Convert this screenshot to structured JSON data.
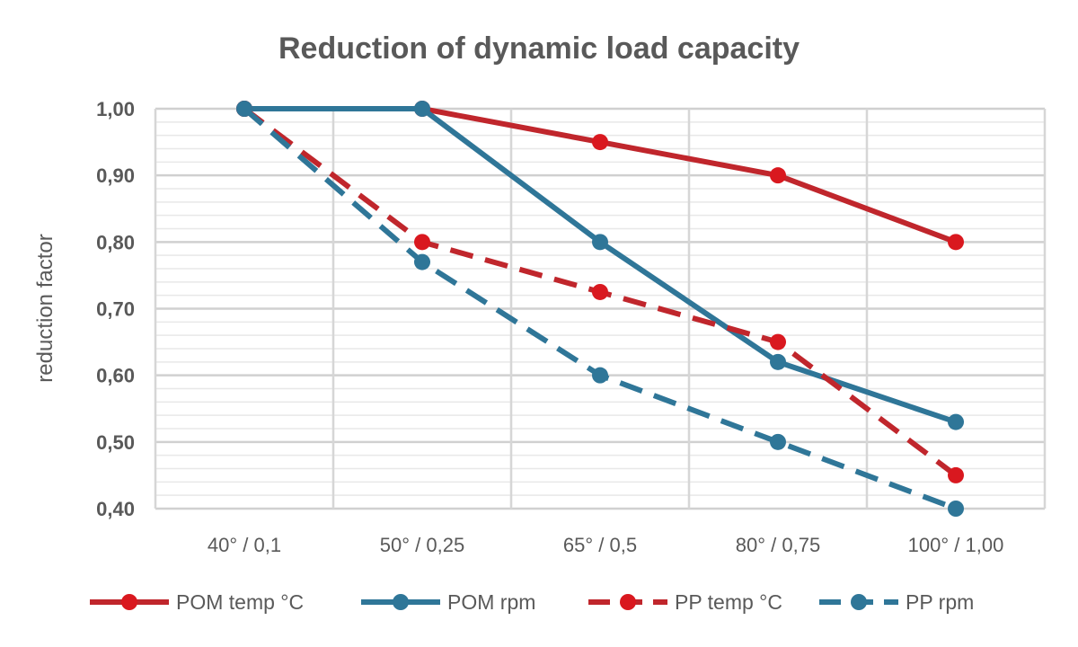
{
  "chart_data": {
    "type": "line",
    "title": "Reduction of dynamic load capacity",
    "xlabel": "",
    "ylabel": "reduction factor",
    "categories": [
      "40° / 0,1",
      "50° / 0,25",
      "65° / 0,5",
      "80° / 0,75",
      "100° / 1,00"
    ],
    "ylim": [
      0.4,
      1.0
    ],
    "yticks": [
      "0,40",
      "0,50",
      "0,60",
      "0,70",
      "0,80",
      "0,90",
      "1,00"
    ],
    "grid": true,
    "legend_position": "bottom",
    "series": [
      {
        "name": "POM temp °C",
        "values": [
          1.0,
          1.0,
          0.95,
          0.9,
          0.8
        ],
        "color": "#c0262c",
        "dash": false
      },
      {
        "name": "POM rpm",
        "values": [
          1.0,
          1.0,
          0.8,
          0.62,
          0.53
        ],
        "color": "#2f7698",
        "dash": false
      },
      {
        "name": "PP temp °C",
        "values": [
          1.0,
          0.8,
          0.725,
          0.65,
          0.45
        ],
        "color": "#c0262c",
        "dash": true
      },
      {
        "name": "PP rpm",
        "values": [
          1.0,
          0.77,
          0.6,
          0.5,
          0.4
        ],
        "color": "#2f7698",
        "dash": true
      }
    ]
  }
}
